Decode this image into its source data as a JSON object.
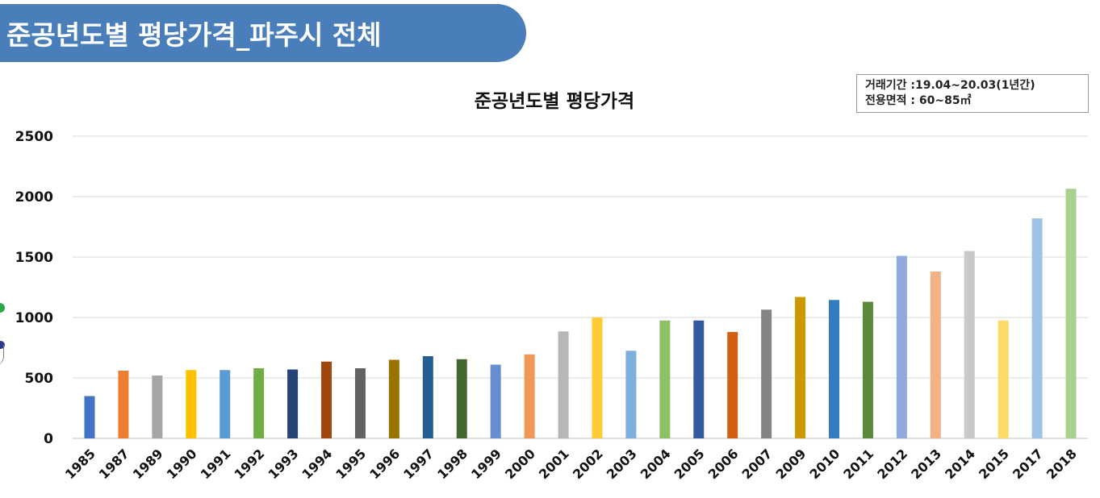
{
  "header": {
    "title": "준공년도별 평당가격_파주시 전체"
  },
  "info_box": {
    "line1": "거래기간 :19.04~20.03(1년간)",
    "line2": "전용면적 : 60~85㎡"
  },
  "chart_data": {
    "type": "bar",
    "title": "준공년도별 평당가격",
    "xlabel": "",
    "ylabel": "",
    "ylim": [
      0,
      2500
    ],
    "yticks": [
      0,
      500,
      1000,
      1500,
      2000,
      2500
    ],
    "grid": true,
    "categories": [
      "1985",
      "1987",
      "1989",
      "1990",
      "1991",
      "1992",
      "1993",
      "1994",
      "1995",
      "1996",
      "1997",
      "1998",
      "1999",
      "2000",
      "2001",
      "2002",
      "2003",
      "2004",
      "2005",
      "2006",
      "2007",
      "2009",
      "2010",
      "2011",
      "2012",
      "2013",
      "2014",
      "2015",
      "2017",
      "2018"
    ],
    "values": [
      350,
      560,
      520,
      565,
      565,
      580,
      570,
      635,
      580,
      650,
      680,
      655,
      610,
      695,
      885,
      1000,
      725,
      975,
      975,
      880,
      1065,
      1170,
      1145,
      1130,
      1510,
      1380,
      1550,
      975,
      1820,
      2065
    ],
    "colors": [
      "#4472c4",
      "#ed7d31",
      "#a5a5a5",
      "#ffc000",
      "#5b9bd5",
      "#70ad47",
      "#264478",
      "#9e480e",
      "#636363",
      "#997300",
      "#255e91",
      "#43682b",
      "#698ed0",
      "#f1975a",
      "#b7b7b7",
      "#ffcd33",
      "#7cafdd",
      "#8cc168",
      "#335aa1",
      "#d26012",
      "#848484",
      "#cc9a00",
      "#327dc2",
      "#5a8a39",
      "#8faadc",
      "#f4b183",
      "#c9c9c9",
      "#ffd966",
      "#9dc3e6",
      "#a9d18e"
    ]
  }
}
